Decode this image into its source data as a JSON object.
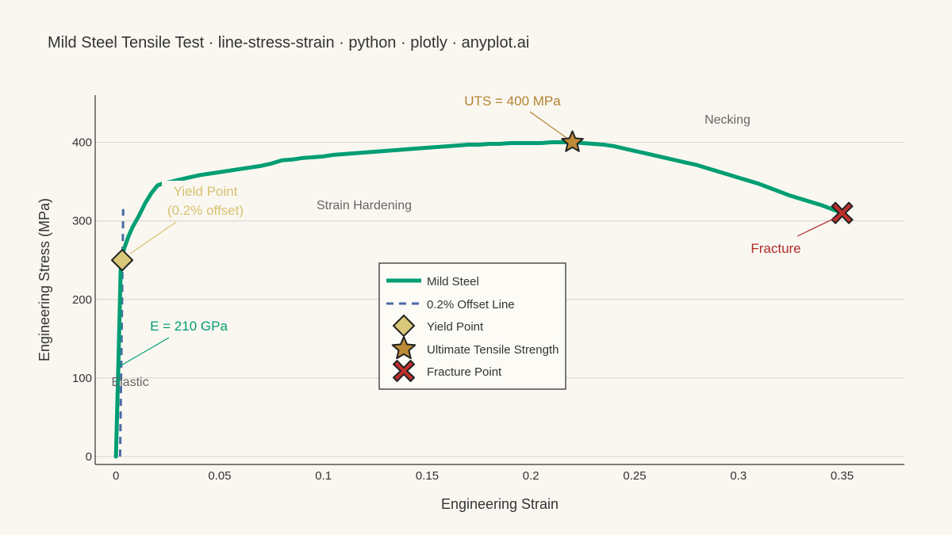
{
  "colors": {
    "background": "#faf7f1",
    "steel": "#009e73",
    "offset": "#4a6aa5",
    "yield": "#d8c878",
    "uts": "#bd8b36",
    "fracture": "#c0302e",
    "grid": "#d9d6cf",
    "axis": "#333333",
    "text": "#333333",
    "note": "#666666",
    "yield_text": "#d8c170",
    "uts_text": "#b38332",
    "fracture_text": "#b22a2a"
  },
  "chart_data": {
    "type": "line",
    "title": "Mild Steel Tensile Test · line-stress-strain · python · plotly · anyplot.ai",
    "xlabel": "Engineering Strain",
    "ylabel": "Engineering Stress (MPa)",
    "xlim": [
      -0.01,
      0.38
    ],
    "ylim": [
      -10,
      460
    ],
    "x_ticks": [
      0,
      0.05,
      0.1,
      0.15,
      0.2,
      0.25,
      0.3,
      0.35
    ],
    "x_tick_labels": [
      "0",
      "0.05",
      "0.1",
      "0.15",
      "0.2",
      "0.25",
      "0.3",
      "0.35"
    ],
    "y_ticks": [
      0,
      100,
      200,
      300,
      400
    ],
    "y_tick_labels": [
      "0",
      "100",
      "200",
      "300",
      "400"
    ],
    "grid": "horizontal",
    "legend_position": "center",
    "series": [
      {
        "name": "Mild Steel",
        "x": [
          0,
          0.0012,
          0.0024,
          0.004,
          0.006,
          0.008,
          0.011,
          0.014,
          0.017,
          0.02,
          0.023,
          0.027,
          0.03,
          0.035,
          0.04,
          0.045,
          0.05,
          0.055,
          0.06,
          0.065,
          0.07,
          0.075,
          0.08,
          0.085,
          0.09,
          0.095,
          0.1,
          0.105,
          0.11,
          0.115,
          0.12,
          0.125,
          0.13,
          0.135,
          0.14,
          0.145,
          0.15,
          0.155,
          0.16,
          0.165,
          0.17,
          0.175,
          0.18,
          0.185,
          0.19,
          0.195,
          0.2,
          0.205,
          0.21,
          0.215,
          0.22,
          0.225,
          0.23,
          0.235,
          0.24,
          0.245,
          0.25,
          0.255,
          0.26,
          0.265,
          0.27,
          0.275,
          0.28,
          0.285,
          0.29,
          0.295,
          0.3,
          0.305,
          0.31,
          0.315,
          0.32,
          0.325,
          0.33,
          0.335,
          0.34,
          0.345,
          0.35
        ],
        "values": [
          0,
          120,
          250,
          265,
          280,
          292,
          306,
          322,
          335,
          345,
          348,
          350,
          352,
          355,
          358,
          360,
          362,
          364,
          366,
          368,
          370,
          373,
          377,
          378,
          380,
          381,
          382,
          384,
          385,
          386,
          387,
          388,
          389,
          390,
          391,
          392,
          393,
          394,
          395,
          396,
          397,
          397,
          398,
          398,
          399,
          399,
          399,
          399,
          400,
          400,
          400,
          399,
          398,
          397,
          395,
          392,
          389,
          386,
          383,
          380,
          377,
          374,
          371,
          367,
          363,
          359,
          355,
          351,
          347,
          342,
          337,
          332,
          328,
          324,
          320,
          315,
          310
        ]
      },
      {
        "name": "0.2% Offset Line",
        "x": [
          0.002,
          0.0035
        ],
        "values": [
          0,
          315
        ]
      }
    ],
    "markers": [
      {
        "name": "Yield Point",
        "x": 0.003,
        "y": 250
      },
      {
        "name": "Ultimate Tensile Strength",
        "x": 0.22,
        "y": 400
      },
      {
        "name": "Fracture Point",
        "x": 0.35,
        "y": 310
      }
    ],
    "annotations": {
      "yield_line1": "Yield Point",
      "yield_line2": "(0.2% offset)",
      "uts": "UTS = 400 MPa",
      "fracture": "Fracture",
      "modulus": "E = 210 GPa",
      "elastic": "Elastic",
      "hardening": "Strain Hardening",
      "necking": "Necking"
    }
  }
}
